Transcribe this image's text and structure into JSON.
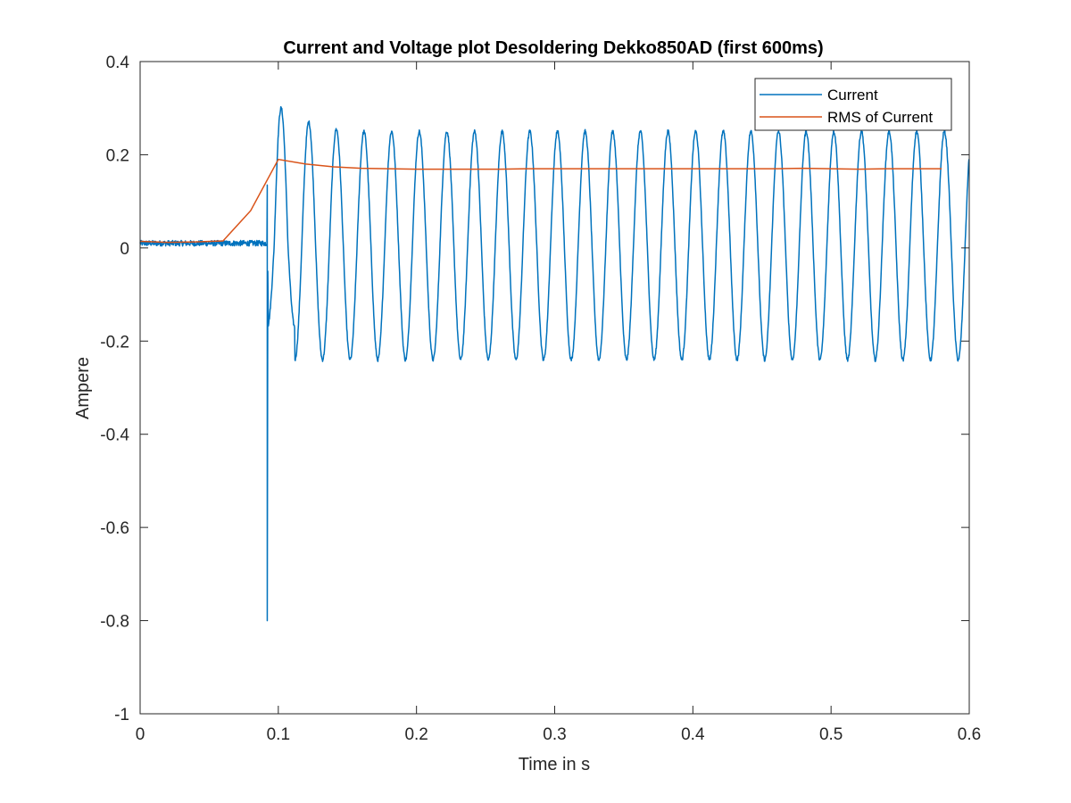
{
  "chart_data": {
    "type": "line",
    "title": "Current and Voltage plot Desoldering Dekko850AD (first 600ms)",
    "xlabel": "Time in s",
    "ylabel": "Ampere",
    "xlim": [
      0,
      0.6
    ],
    "ylim": [
      -1,
      0.4
    ],
    "xticks": [
      0,
      0.1,
      0.2,
      0.3,
      0.4,
      0.5,
      0.6
    ],
    "xtick_labels": [
      "0",
      "0.1",
      "0.2",
      "0.3",
      "0.4",
      "0.5",
      "0.6"
    ],
    "yticks": [
      -1,
      -0.8,
      -0.6,
      -0.4,
      -0.2,
      0,
      0.2,
      0.4
    ],
    "ytick_labels": [
      "-1",
      "-0.8",
      "-0.6",
      "-0.4",
      "-0.2",
      "0",
      "0.2",
      "0.4"
    ],
    "grid": false,
    "legend_position": "top-right",
    "series": [
      {
        "name": "Current",
        "color": "#0072BD",
        "style": "noisy-sinusoid",
        "pre_switch_level": 0.01,
        "pre_switch_noise": 0.006,
        "switch_time": 0.092,
        "spike_min": -0.8,
        "spike_max": 0.135,
        "frequency_hz": 50,
        "amplitude_peak_values": [
          0.3,
          0.27,
          0.255,
          0.25,
          0.25
        ],
        "steady_state_max": 0.25,
        "steady_state_min": -0.24
      },
      {
        "name": "RMS of Current",
        "color": "#D95319",
        "x": [
          0,
          0.02,
          0.04,
          0.06,
          0.08,
          0.1,
          0.12,
          0.14,
          0.16,
          0.18,
          0.2,
          0.22,
          0.24,
          0.26,
          0.28,
          0.3,
          0.32,
          0.34,
          0.36,
          0.38,
          0.4,
          0.42,
          0.44,
          0.46,
          0.48,
          0.5,
          0.52,
          0.54,
          0.56,
          0.58
        ],
        "y": [
          0.014,
          0.012,
          0.013,
          0.015,
          0.08,
          0.19,
          0.18,
          0.174,
          0.171,
          0.17,
          0.169,
          0.169,
          0.169,
          0.169,
          0.17,
          0.17,
          0.17,
          0.17,
          0.17,
          0.17,
          0.17,
          0.17,
          0.17,
          0.17,
          0.171,
          0.17,
          0.169,
          0.17,
          0.17,
          0.17
        ]
      }
    ]
  }
}
